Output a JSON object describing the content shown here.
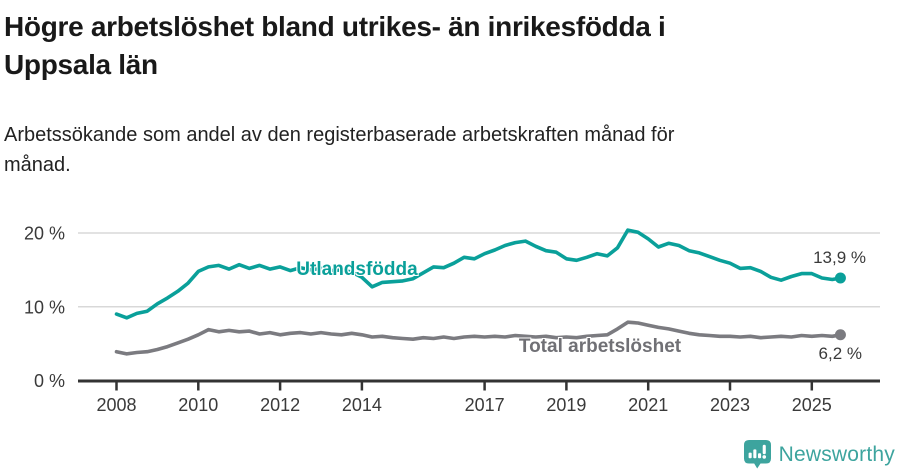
{
  "header": {
    "title_lines": [
      "Högre arbetslöshet bland utrikes- än inrikesfödda i",
      "Uppsala län"
    ],
    "subtitle_lines": [
      "Arbetssökande som andel av den registerbaserade arbetskraften månad för",
      "månad."
    ]
  },
  "footer": {
    "brand": "Newsworthy"
  },
  "colors": {
    "foreign_born": "#0aa09a",
    "total": "#7b7b80",
    "total_label": "#707075",
    "axis": "#333333",
    "axis_text": "#3a3a3a",
    "grid": "#d8d8d8",
    "value_label": "#3a3a3a",
    "brand_teal": "#3da49e"
  },
  "chart_data": {
    "type": "line",
    "title": "Högre arbetslöshet bland utrikes- än inrikesfödda i Uppsala län",
    "subtitle": "Arbetssökande som andel av den registerbaserade arbetskraften månad för månad.",
    "ylabel": "",
    "xlabel": "",
    "ylim": [
      0,
      22
    ],
    "xlim": [
      2007.1,
      2026.6
    ],
    "grid": "horizontal",
    "legend": "inline-labels-on-lines",
    "yticks": [
      {
        "value": 0,
        "label": "0 %"
      },
      {
        "value": 10,
        "label": "10 %"
      },
      {
        "value": 20,
        "label": "20 %"
      }
    ],
    "xticks": [
      {
        "value": 2008,
        "label": "2008"
      },
      {
        "value": 2010,
        "label": "2010"
      },
      {
        "value": 2012,
        "label": "2012"
      },
      {
        "value": 2014,
        "label": "2014"
      },
      {
        "value": 2017,
        "label": "2017"
      },
      {
        "value": 2019,
        "label": "2019"
      },
      {
        "value": 2021,
        "label": "2021"
      },
      {
        "value": 2023,
        "label": "2023"
      },
      {
        "value": 2025,
        "label": "2025"
      }
    ],
    "x": [
      2008,
      2008.25,
      2008.5,
      2008.75,
      2009,
      2009.25,
      2009.5,
      2009.75,
      2010,
      2010.25,
      2010.5,
      2010.75,
      2011,
      2011.25,
      2011.5,
      2011.75,
      2012,
      2012.25,
      2012.5,
      2012.75,
      2013,
      2013.25,
      2013.5,
      2013.75,
      2014,
      2014.25,
      2014.5,
      2014.75,
      2015,
      2015.25,
      2015.5,
      2015.75,
      2016,
      2016.25,
      2016.5,
      2016.75,
      2017,
      2017.25,
      2017.5,
      2017.75,
      2018,
      2018.25,
      2018.5,
      2018.75,
      2019,
      2019.25,
      2019.5,
      2019.75,
      2020,
      2020.25,
      2020.5,
      2020.75,
      2021,
      2021.25,
      2021.5,
      2021.75,
      2022,
      2022.25,
      2022.5,
      2022.75,
      2023,
      2023.25,
      2023.5,
      2023.75,
      2024,
      2024.25,
      2024.5,
      2024.75,
      2025,
      2025.25,
      2025.5,
      2025.7
    ],
    "series": [
      {
        "name": "Utlandsfödda",
        "color_key": "foreign_born",
        "end_label": "13,9 %",
        "end_value": 13.9,
        "values": [
          9.0,
          8.5,
          9.1,
          9.4,
          10.4,
          11.2,
          12.1,
          13.2,
          14.8,
          15.4,
          15.6,
          15.1,
          15.7,
          15.2,
          15.6,
          15.1,
          15.4,
          14.9,
          15.3,
          15.0,
          15.2,
          14.9,
          15.0,
          14.7,
          14.0,
          12.7,
          13.3,
          13.4,
          13.5,
          13.8,
          14.6,
          15.4,
          15.3,
          15.9,
          16.7,
          16.5,
          17.2,
          17.7,
          18.3,
          18.7,
          18.9,
          18.2,
          17.6,
          17.4,
          16.5,
          16.3,
          16.7,
          17.2,
          16.9,
          18.0,
          20.4,
          20.1,
          19.2,
          18.1,
          18.6,
          18.3,
          17.6,
          17.3,
          16.8,
          16.3,
          15.9,
          15.2,
          15.3,
          14.8,
          14.0,
          13.6,
          14.1,
          14.5,
          14.5,
          13.9,
          13.7,
          13.9
        ]
      },
      {
        "name": "Total arbetslöshet",
        "color_key": "total",
        "end_label": "6,2 %",
        "end_value": 6.2,
        "values": [
          3.9,
          3.6,
          3.8,
          3.9,
          4.2,
          4.6,
          5.1,
          5.6,
          6.2,
          6.9,
          6.6,
          6.8,
          6.6,
          6.7,
          6.3,
          6.5,
          6.2,
          6.4,
          6.5,
          6.3,
          6.5,
          6.3,
          6.2,
          6.4,
          6.2,
          5.9,
          6.0,
          5.8,
          5.7,
          5.6,
          5.8,
          5.7,
          5.9,
          5.7,
          5.9,
          6.0,
          5.9,
          6.0,
          5.9,
          6.1,
          6.0,
          5.9,
          6.0,
          5.8,
          5.9,
          5.8,
          6.0,
          6.1,
          6.2,
          7.0,
          7.9,
          7.8,
          7.5,
          7.2,
          7.0,
          6.7,
          6.4,
          6.2,
          6.1,
          6.0,
          6.0,
          5.9,
          6.0,
          5.8,
          5.9,
          6.0,
          5.9,
          6.1,
          6.0,
          6.1,
          6.0,
          6.2
        ]
      }
    ]
  }
}
